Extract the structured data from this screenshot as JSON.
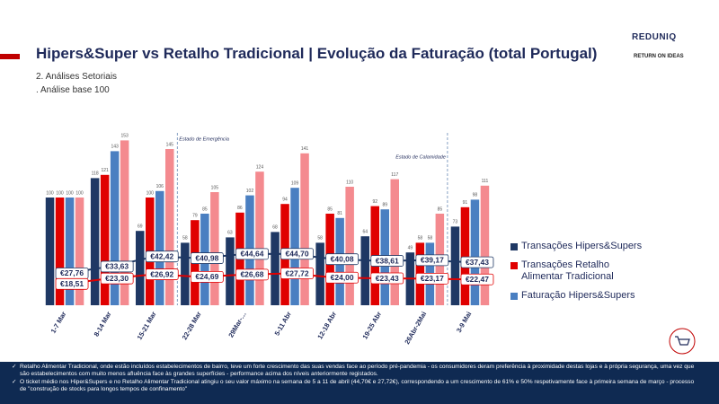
{
  "header": {
    "title": "Hipers&Super vs Retalho Tradicional | Evolução da Faturação (total Portugal)",
    "section": "2. Análises Setoriais",
    "subsection": ". Análise base 100",
    "logo": "REDUNIQ",
    "logo_secondary": "RETURN ON IDEAS"
  },
  "chart_data": {
    "type": "bar",
    "categories": [
      "1-7 Mar",
      "8-14 Mar",
      "15-21 Mar",
      "22-28 Mar",
      "29Mar-…",
      "5-11 Abr",
      "12-18 Abr",
      "19-25 Abr",
      "26Abr-2Mai",
      "3-9 Mai"
    ],
    "series": [
      {
        "name": "Transações Hipers&Supers",
        "color": "#1f3864",
        "values": [
          100,
          118,
          69,
          58,
          63,
          68,
          58,
          64,
          49,
          73
        ]
      },
      {
        "name": "Transações Retalho Alimentar Tradicional",
        "color": "#e00000",
        "values": [
          100,
          121,
          100,
          79,
          86,
          94,
          85,
          92,
          58,
          91
        ]
      },
      {
        "name": "Faturação Hipers&Supers",
        "color": "#4a7fc1",
        "values": [
          100,
          143,
          106,
          85,
          102,
          109,
          81,
          89,
          58,
          98
        ]
      },
      {
        "color": "#f48a8f",
        "values": [
          100,
          153,
          145,
          105,
          124,
          141,
          110,
          117,
          85,
          111
        ]
      },
      {
        "type": "line",
        "axis": "y2",
        "color": "#1f3864",
        "values": [
          27.76,
          33.63,
          42.42,
          40.98,
          44.64,
          44.7,
          40.08,
          38.61,
          39.17,
          37.43
        ],
        "value_labels": [
          "€27,76",
          "€33,63",
          "€42,42",
          "€40,98",
          "€44,64",
          "€44,70",
          "€40,08",
          "€38,61",
          "€39,17",
          "€37,43"
        ]
      },
      {
        "type": "line",
        "axis": "y2",
        "color": "#e00000",
        "values": [
          18.51,
          23.3,
          26.92,
          24.69,
          26.68,
          27.72,
          24.0,
          23.43,
          23.17,
          22.47
        ],
        "value_labels": [
          "€18,51",
          "€23,30",
          "€26,92",
          "€24,69",
          "€26,68",
          "€27,72",
          "€24,00",
          "€23,43",
          "€23,17",
          "€22,47"
        ]
      }
    ],
    "ylim": [
      0,
      160
    ],
    "y2lim": [
      0,
      150
    ],
    "annotations": [
      "Estado de Emergência",
      "Estado de Calamidade"
    ]
  },
  "footer": {
    "notes": [
      "Retalho Alimentar Tradicional, onde estão incluídos estabelecimentos de bairro, teve um forte crescimento das suas vendas face ao período pré-pandemia - os consumidores deram preferência à proximidade destas lojas e à própria segurança, uma vez que são estabelecimentos com muito menos afluência face às grandes superfícies - performance acima dos níveis anteriormente registados.",
      "O ticket médio nos Hiper&Supers e no Retalho Alimentar Tradicional atingiu o seu valor máximo na semana de 5 a 11 de abril (44,70€ e 27,72€), correspondendo a um crescimento de 61% e 50% respetivamente face à primeira semana de março - processo de \"construção de stocks para longos tempos de confinamento\""
    ]
  }
}
